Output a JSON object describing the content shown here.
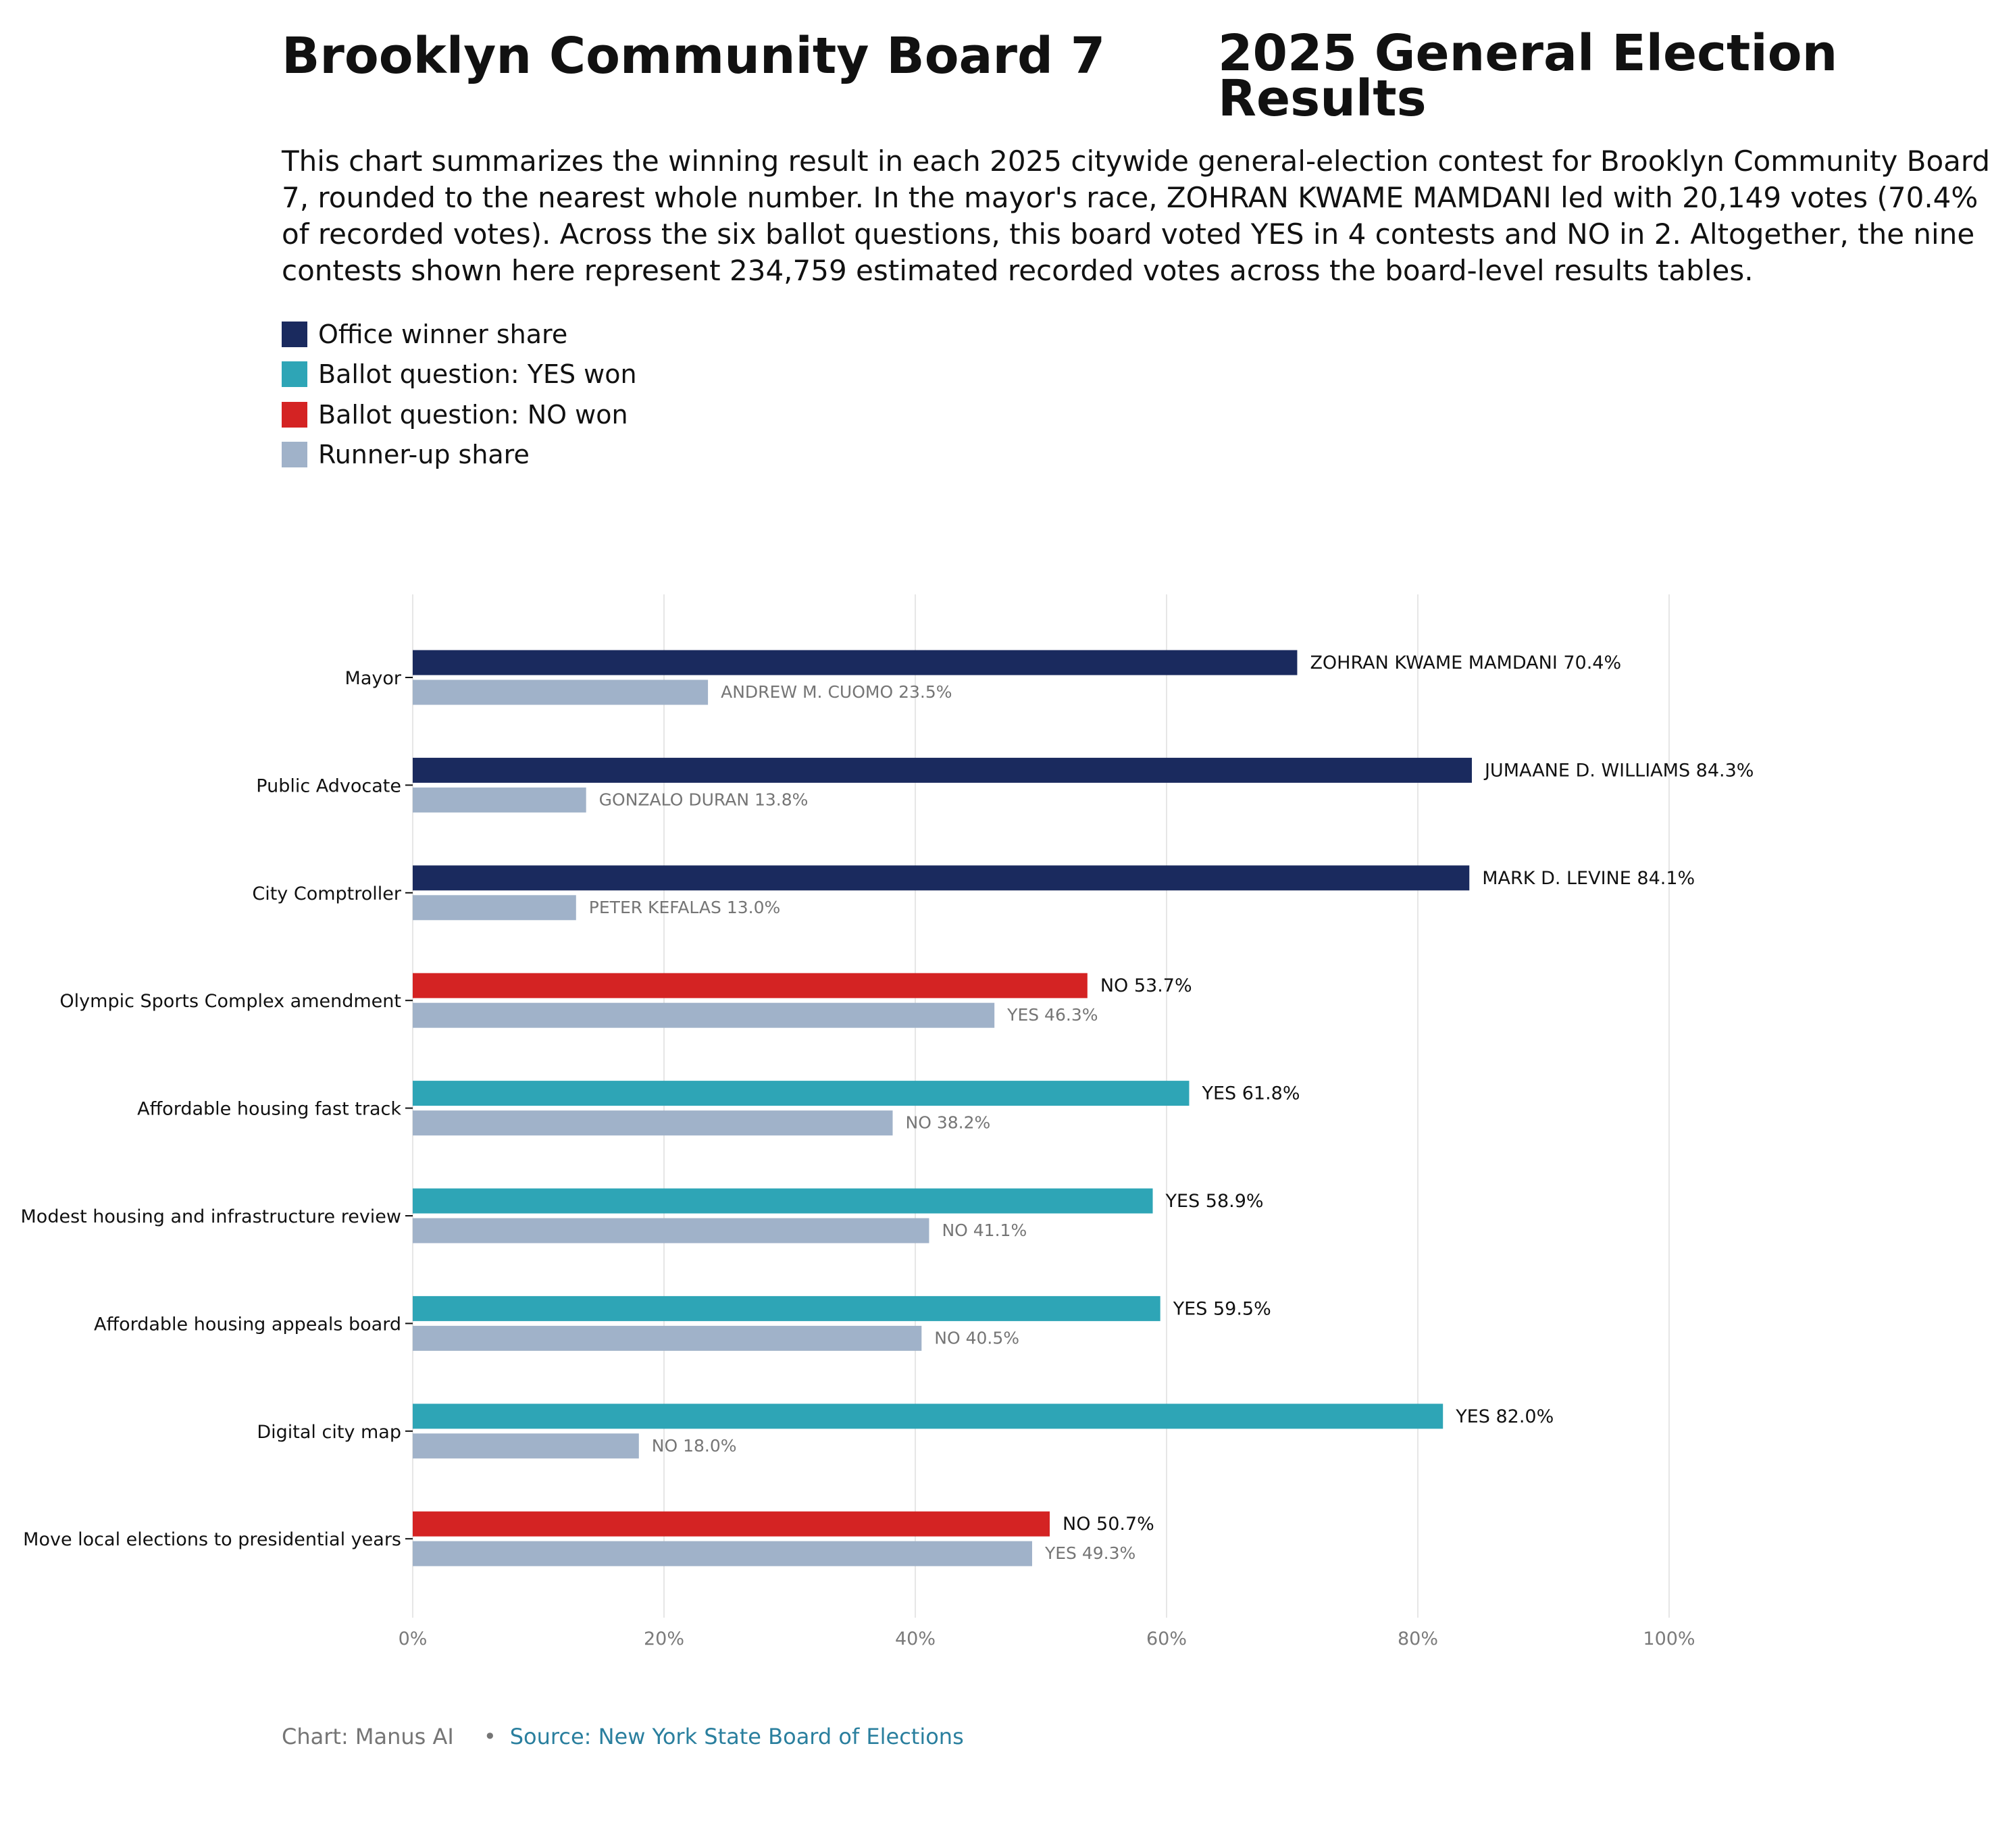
{
  "header": {
    "title_left": "Brooklyn Community Board 7",
    "title_right": "2025 General Election Results",
    "summary": "This chart summarizes the winning result in each 2025 citywide general-election contest for Brooklyn Community Board 7, rounded to the nearest whole number. In the mayor's race, ZOHRAN KWAME MAMDANI led with 20,149 votes (70.4% of recorded votes). Across the six ballot questions, this board voted YES in 4 contests and NO in 2. Altogether, the nine contests shown here represent 234,759 estimated recorded votes across the board-level results tables."
  },
  "colors": {
    "office_winner": "#1a2a5e",
    "yes_won": "#2ea5b6",
    "no_won": "#d42323",
    "runner_up": "#a0b2c9",
    "grid": "#e6e6e6",
    "axis_text": "#7a7a7a",
    "winner_label": "#111111",
    "runner_label": "#757575"
  },
  "legend": [
    {
      "label": "Office winner share",
      "color": "#1a2a5e"
    },
    {
      "label": "Ballot question: YES won",
      "color": "#2ea5b6"
    },
    {
      "label": "Ballot question: NO won",
      "color": "#d42323"
    },
    {
      "label": "Runner-up share",
      "color": "#a0b2c9"
    }
  ],
  "chart_data": {
    "type": "bar",
    "orientation": "horizontal",
    "xlim": [
      0,
      100
    ],
    "x_ticks": [
      "0%",
      "20%",
      "40%",
      "60%",
      "80%",
      "100%"
    ],
    "grid": true,
    "legend_position": "top-left",
    "categories": [
      "Mayor",
      "Public Advocate",
      "City Comptroller",
      "Olympic Sports Complex amendment",
      "Affordable housing fast track",
      "Modest housing and infrastructure review",
      "Affordable housing appeals board",
      "Digital city map",
      "Move local elections to presidential years"
    ],
    "series": [
      {
        "name": "Winner",
        "values": [
          70.4,
          84.3,
          84.1,
          53.7,
          61.8,
          58.9,
          59.5,
          82.0,
          50.7
        ],
        "kinds": [
          "office",
          "office",
          "office",
          "no",
          "yes",
          "yes",
          "yes",
          "yes",
          "no"
        ],
        "labels": [
          "ZOHRAN KWAME MAMDANI 70.4%",
          "JUMAANE D. WILLIAMS 84.3%",
          "MARK D. LEVINE 84.1%",
          "NO 53.7%",
          "YES 61.8%",
          "YES 58.9%",
          "YES 59.5%",
          "YES 82.0%",
          "NO 50.7%"
        ]
      },
      {
        "name": "Runner-up share",
        "values": [
          23.5,
          13.8,
          13.0,
          46.3,
          38.2,
          41.1,
          40.5,
          18.0,
          49.3
        ],
        "labels": [
          "ANDREW M. CUOMO 23.5%",
          "GONZALO DURAN 13.8%",
          "PETER KEFALAS 13.0%",
          "YES 46.3%",
          "NO 38.2%",
          "NO 41.1%",
          "NO 40.5%",
          "NO 18.0%",
          "YES 49.3%"
        ]
      }
    ]
  },
  "footer": {
    "credit": "Chart: Manus AI",
    "bullet": "•",
    "source": "Source: New York State Board of Elections"
  }
}
